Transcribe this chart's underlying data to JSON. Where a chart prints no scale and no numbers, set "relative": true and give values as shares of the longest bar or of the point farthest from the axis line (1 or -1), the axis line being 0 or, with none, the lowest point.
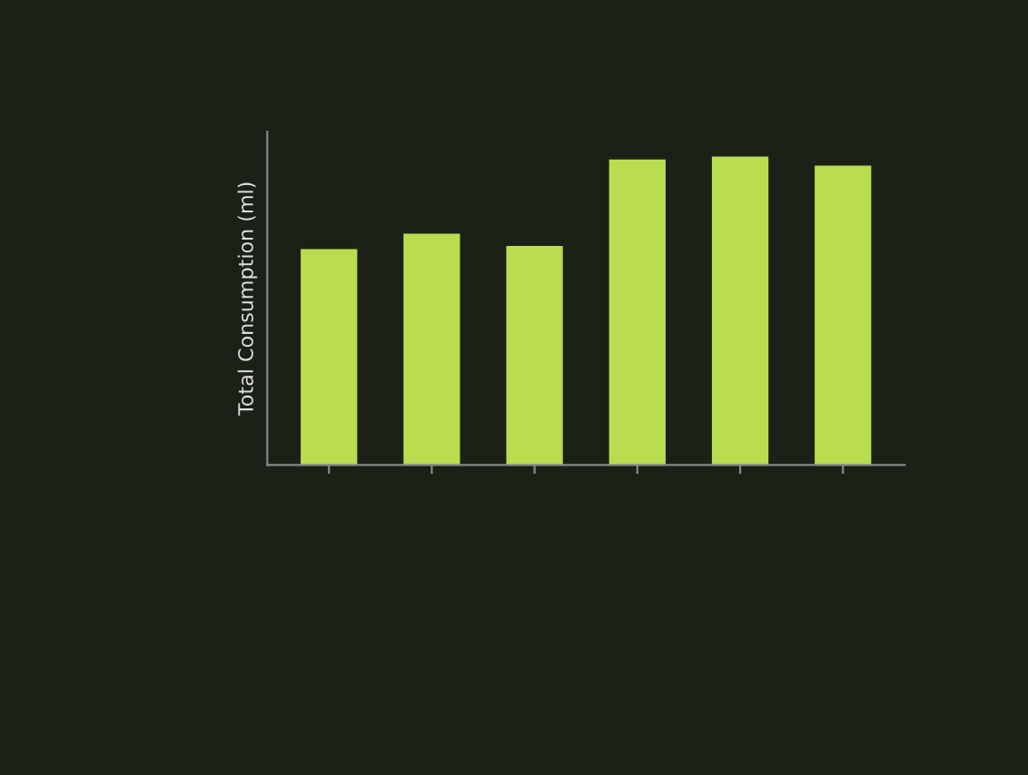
{
  "chart_data": {
    "type": "bar",
    "ylabel": "Total Consumption (ml)",
    "relative": true,
    "categories": [
      null,
      null,
      null,
      null,
      null,
      null
    ],
    "values": [
      0.7,
      0.75,
      0.71,
      0.99,
      1.0,
      0.97
    ],
    "color": "#b9dd4f"
  }
}
